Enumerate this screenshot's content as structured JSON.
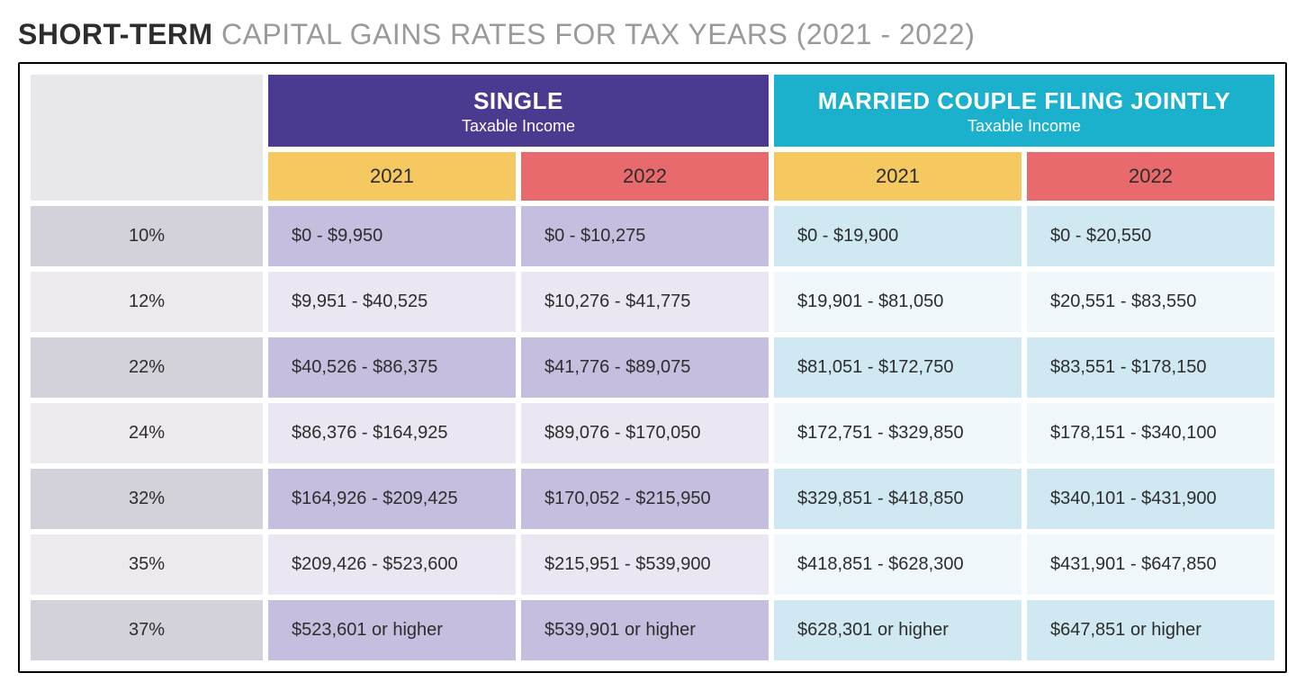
{
  "title": {
    "bold": "SHORT-TERM",
    "rest": " CAPITAL GAINS RATES FOR TAX YEARS (2021 - 2022)",
    "bold_color": "#2d2d2d",
    "rest_color": "#9a9a9a",
    "fontsize": 32
  },
  "table": {
    "border_color": "#000000",
    "cell_spacing": 6,
    "blank_head_bg": "#e8e8ea",
    "groups": [
      {
        "title": "SINGLE",
        "subtitle": "Taxable Income",
        "bg": "#4b3a8f",
        "fg": "#ffffff"
      },
      {
        "title": "MARRIED COUPLE FILING JOINTLY",
        "subtitle": "Taxable Income",
        "bg": "#1bb0cc",
        "fg": "#ffffff"
      }
    ],
    "year_headers": [
      {
        "label": "2021",
        "bg": "#f5c95f",
        "fg": "#2d2d2d"
      },
      {
        "label": "2022",
        "bg": "#e96a6c",
        "fg": "#2d2d2d"
      },
      {
        "label": "2021",
        "bg": "#f5c95f",
        "fg": "#2d2d2d"
      },
      {
        "label": "2022",
        "bg": "#e96a6c",
        "fg": "#2d2d2d"
      }
    ],
    "rate_col": {
      "odd_bg": "#d3d2da",
      "even_bg": "#eceaef"
    },
    "single_col": {
      "odd_bg": "#c6bedf",
      "even_bg": "#eae6f2"
    },
    "married_col": {
      "odd_bg": "#cfe8f1",
      "even_bg": "#f0f7fb"
    },
    "rows": [
      {
        "rate": "10%",
        "cells": [
          "$0 - $9,950",
          "$0 - $10,275",
          "$0 - $19,900",
          "$0 - $20,550"
        ]
      },
      {
        "rate": "12%",
        "cells": [
          "$9,951 - $40,525",
          "$10,276 - $41,775",
          "$19,901 - $81,050",
          "$20,551 - $83,550"
        ]
      },
      {
        "rate": "22%",
        "cells": [
          "$40,526 - $86,375",
          "$41,776 - $89,075",
          "$81,051 - $172,750",
          "$83,551 - $178,150"
        ]
      },
      {
        "rate": "24%",
        "cells": [
          "$86,376 - $164,925",
          "$89,076 - $170,050",
          "$172,751 - $329,850",
          "$178,151 - $340,100"
        ]
      },
      {
        "rate": "32%",
        "cells": [
          "$164,926 - $209,425",
          "$170,052 - $215,950",
          "$329,851 - $418,850",
          "$340,101 - $431,900"
        ]
      },
      {
        "rate": "35%",
        "cells": [
          "$209,426 - $523,600",
          "$215,951 - $539,900",
          "$418,851 - $628,300",
          "$431,901 - $647,850"
        ]
      },
      {
        "rate": "37%",
        "cells": [
          "$523,601 or higher",
          "$539,901 or higher",
          "$628,301 or higher",
          "$647,851 or higher"
        ]
      }
    ]
  }
}
